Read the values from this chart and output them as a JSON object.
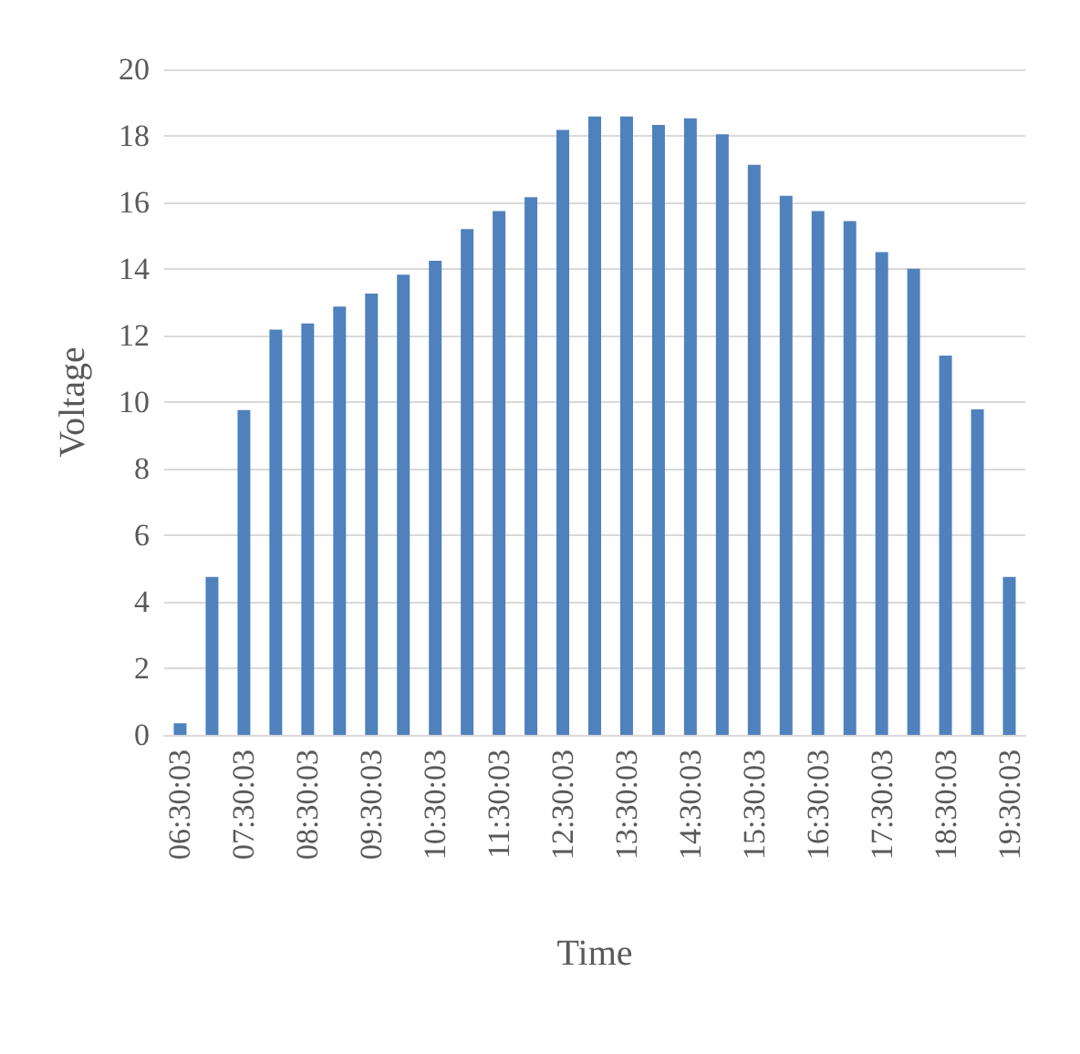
{
  "chart_data": {
    "type": "bar",
    "xlabel": "Time",
    "ylabel": "Voltage",
    "categories": [
      "06:30:03",
      null,
      "07:30:03",
      null,
      "08:30:03",
      null,
      "09:30:03",
      null,
      "10:30:03",
      null,
      "11:30:03",
      null,
      "12:30:03",
      null,
      "13:30:03",
      null,
      "14:30:03",
      null,
      "15:30:03",
      null,
      "16:30:03",
      null,
      "17:30:03",
      null,
      "18:30:03",
      null,
      "19:30:03"
    ],
    "values": [
      0.35,
      4.75,
      9.76,
      12.18,
      12.36,
      12.87,
      13.26,
      13.83,
      14.25,
      15.2,
      15.74,
      16.16,
      18.18,
      18.58,
      18.58,
      18.33,
      18.53,
      18.05,
      17.13,
      16.2,
      15.74,
      15.44,
      14.51,
      14.01,
      11.4,
      9.78,
      4.75
    ],
    "color": "#4f81bd",
    "ylim": [
      0,
      20
    ],
    "yticks": [
      0,
      2,
      4,
      6,
      8,
      10,
      12,
      14,
      16,
      18,
      20
    ],
    "grid": "y"
  }
}
